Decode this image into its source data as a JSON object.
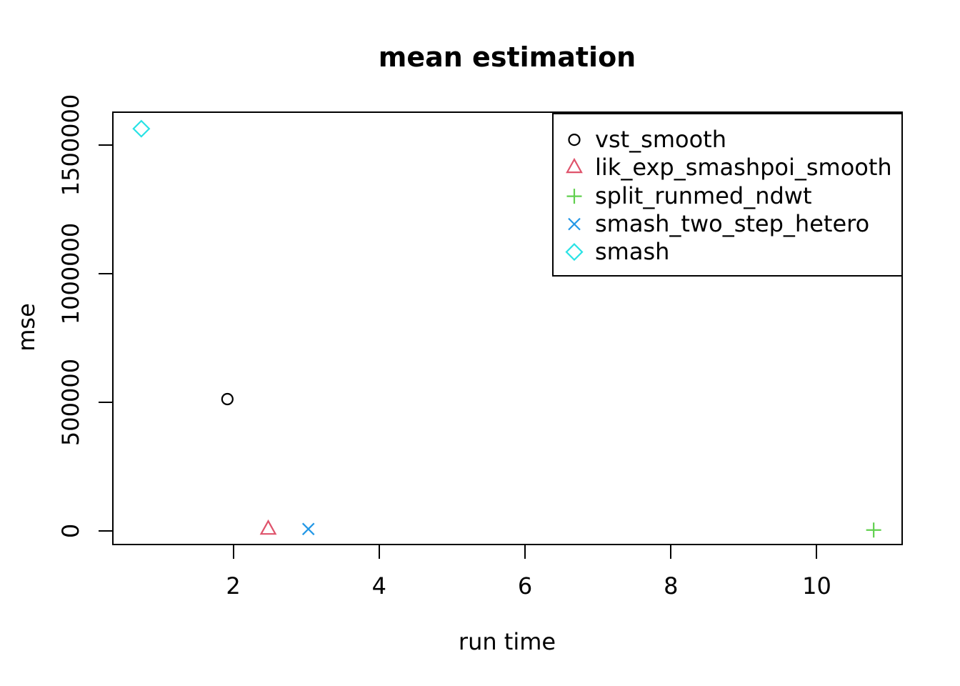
{
  "chart_data": {
    "type": "scatter",
    "title": "mean estimation",
    "xlabel": "run time",
    "ylabel": "mse",
    "xlim": [
      0.34,
      11.18
    ],
    "ylim": [
      -55000,
      1631000
    ],
    "x_ticks": [
      {
        "v": 2,
        "label": "2"
      },
      {
        "v": 4,
        "label": "4"
      },
      {
        "v": 6,
        "label": "6"
      },
      {
        "v": 8,
        "label": "8"
      },
      {
        "v": 10,
        "label": "10"
      }
    ],
    "y_ticks": [
      {
        "v": 0,
        "label": "0"
      },
      {
        "v": 500000,
        "label": "500000"
      },
      {
        "v": 1000000,
        "label": "1000000"
      },
      {
        "v": 1500000,
        "label": "1500000"
      }
    ],
    "grid": false,
    "legend_position": "top-right",
    "series": [
      {
        "name": "vst_smooth",
        "marker": "circle",
        "color": "#000000",
        "points": [
          [
            1.92,
            513000
          ]
        ]
      },
      {
        "name": "lik_exp_smashpoi_smooth",
        "marker": "triangle",
        "color": "#DF536B",
        "points": [
          [
            2.48,
            7000
          ]
        ]
      },
      {
        "name": "split_runmed_ndwt",
        "marker": "plus",
        "color": "#61D04F",
        "points": [
          [
            10.78,
            4000
          ]
        ]
      },
      {
        "name": "smash_two_step_hetero",
        "marker": "x",
        "color": "#2297E6",
        "points": [
          [
            3.03,
            8000
          ]
        ]
      },
      {
        "name": "smash",
        "marker": "diamond",
        "color": "#28E2E5",
        "points": [
          [
            0.74,
            1564000
          ]
        ]
      }
    ],
    "legend": [
      {
        "label": "vst_smooth",
        "marker": "circle",
        "color": "#000000"
      },
      {
        "label": "lik_exp_smashpoi_smooth",
        "marker": "triangle",
        "color": "#DF536B"
      },
      {
        "label": "split_runmed_ndwt",
        "marker": "plus",
        "color": "#61D04F"
      },
      {
        "label": "smash_two_step_hetero",
        "marker": "x",
        "color": "#2297E6"
      },
      {
        "label": "smash",
        "marker": "diamond",
        "color": "#28E2E5"
      }
    ]
  }
}
